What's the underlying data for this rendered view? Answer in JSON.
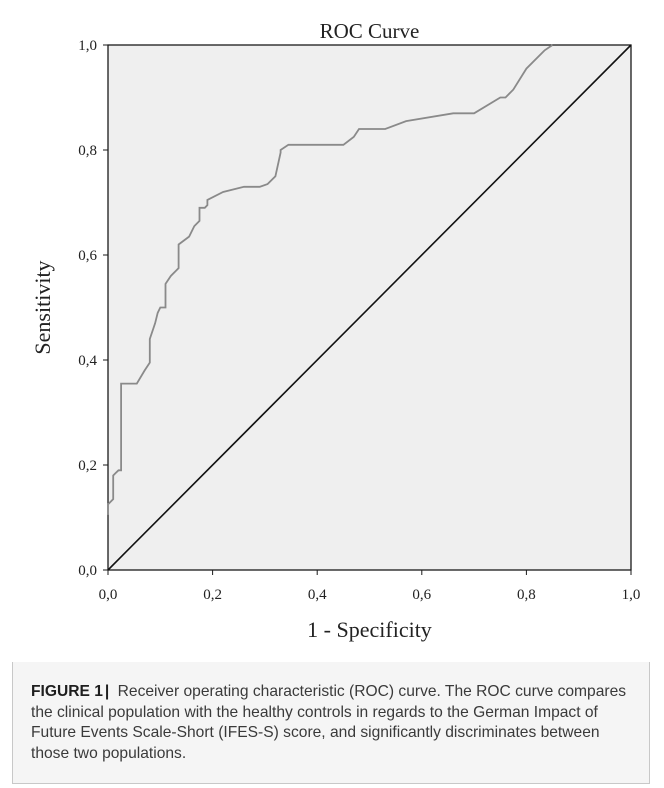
{
  "chart_data": {
    "type": "line",
    "title": "ROC Curve",
    "xlabel": "1 - Specificity",
    "ylabel": "Sensitivity",
    "xlim": [
      0,
      1
    ],
    "ylim": [
      0,
      1
    ],
    "x_ticks": [
      "0,0",
      "0,2",
      "0,4",
      "0,6",
      "0,8",
      "1,0"
    ],
    "y_ticks": [
      "0,0",
      "0,2",
      "0,4",
      "0,6",
      "0,8",
      "1,0"
    ],
    "grid": false,
    "background": "#efefef",
    "series": [
      {
        "color": "#8a8a8a",
        "x": [
          0.0,
          0.0,
          0.01,
          0.01,
          0.015,
          0.02,
          0.025,
          0.025,
          0.055,
          0.07,
          0.08,
          0.08,
          0.09,
          0.095,
          0.1,
          0.11,
          0.11,
          0.12,
          0.13,
          0.135,
          0.135,
          0.155,
          0.165,
          0.175,
          0.175,
          0.185,
          0.19,
          0.19,
          0.22,
          0.26,
          0.29,
          0.305,
          0.32,
          0.33,
          0.33,
          0.345,
          0.45,
          0.47,
          0.48,
          0.53,
          0.57,
          0.66,
          0.7,
          0.75,
          0.76,
          0.775,
          0.8,
          0.83,
          0.835,
          0.85
        ],
        "y": [
          0.105,
          0.125,
          0.135,
          0.18,
          0.185,
          0.19,
          0.19,
          0.355,
          0.355,
          0.38,
          0.395,
          0.44,
          0.47,
          0.49,
          0.5,
          0.5,
          0.545,
          0.56,
          0.57,
          0.575,
          0.62,
          0.635,
          0.655,
          0.665,
          0.69,
          0.69,
          0.695,
          0.705,
          0.72,
          0.73,
          0.73,
          0.735,
          0.75,
          0.795,
          0.8,
          0.81,
          0.81,
          0.825,
          0.84,
          0.84,
          0.855,
          0.87,
          0.87,
          0.9,
          0.9,
          0.915,
          0.955,
          0.985,
          0.99,
          1.0
        ]
      },
      {
        "color": "#111111",
        "x": [
          0,
          1
        ],
        "y": [
          0,
          1
        ]
      }
    ]
  },
  "caption": {
    "label": "FIGURE 1",
    "separator": "|",
    "text": "Receiver operating characteristic (ROC) curve. The ROC curve compares the clinical population with the healthy controls in regards to the German Impact of Future Events Scale-Short (IFES-S) score, and significantly discriminates between those two populations."
  }
}
